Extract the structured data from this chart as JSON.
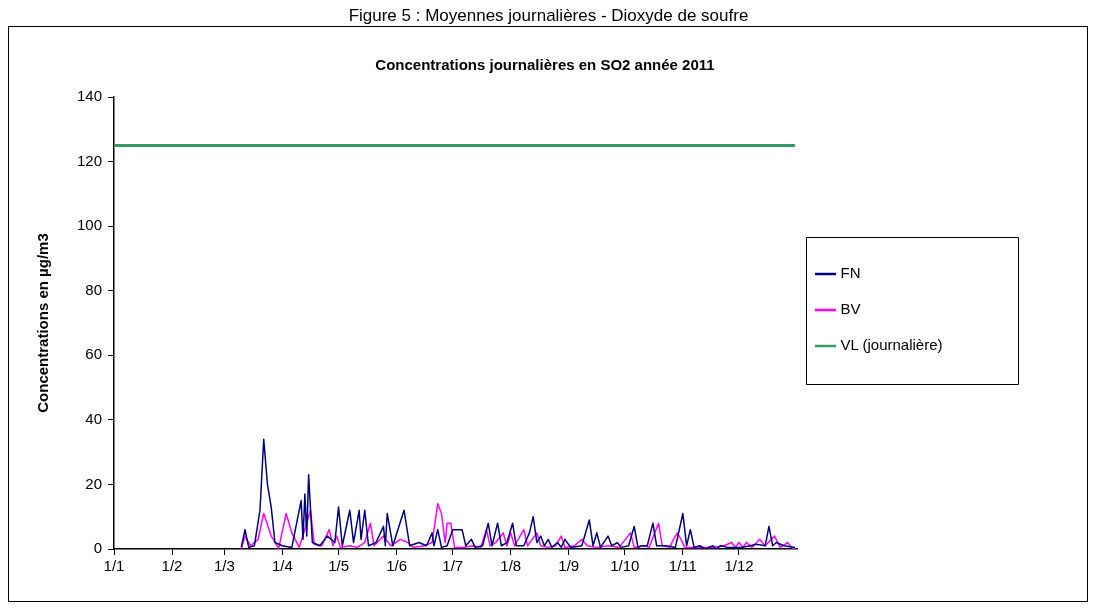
{
  "chart_data": {
    "type": "line",
    "subtitle": "Figure 5 : Moyennes journalières - Dioxyde de soufre",
    "title": "Concentrations journalières en SO2 année 2011",
    "ylabel": "Concentrations en µg/m3",
    "xlim": [
      "2011-01-01",
      "2012-01-01"
    ],
    "xticks": [
      {
        "value": "2011-01-01",
        "label": "1/1"
      },
      {
        "value": "2011-02-01",
        "label": "1/2"
      },
      {
        "value": "2011-03-01",
        "label": "1/3"
      },
      {
        "value": "2011-04-01",
        "label": "1/4"
      },
      {
        "value": "2011-05-01",
        "label": "1/5"
      },
      {
        "value": "2011-06-01",
        "label": "1/6"
      },
      {
        "value": "2011-07-01",
        "label": "1/7"
      },
      {
        "value": "2011-08-01",
        "label": "1/8"
      },
      {
        "value": "2011-09-01",
        "label": "1/9"
      },
      {
        "value": "2011-10-01",
        "label": "1/10"
      },
      {
        "value": "2011-11-01",
        "label": "1/11"
      },
      {
        "value": "2011-12-01",
        "label": "1/12"
      }
    ],
    "ylim": [
      0,
      140
    ],
    "yticks": [
      0,
      20,
      40,
      60,
      80,
      100,
      120,
      140
    ],
    "grid": false,
    "legend": "right",
    "marker": "none",
    "line_style": "solid",
    "series": [
      {
        "name": "FN",
        "color": "#000080",
        "x": [
          "2011-03-10",
          "2011-03-12",
          "2011-03-14",
          "2011-03-17",
          "2011-03-20",
          "2011-03-22",
          "2011-03-24",
          "2011-03-26",
          "2011-03-28",
          "2011-04-01",
          "2011-04-06",
          "2011-04-11",
          "2011-04-12",
          "2011-04-13",
          "2011-04-14",
          "2011-04-15",
          "2011-04-17",
          "2011-04-21",
          "2011-04-25",
          "2011-04-29",
          "2011-05-01",
          "2011-05-03",
          "2011-05-07",
          "2011-05-09",
          "2011-05-12",
          "2011-05-13",
          "2011-05-15",
          "2011-05-17",
          "2011-05-21",
          "2011-05-25",
          "2011-05-26",
          "2011-05-27",
          "2011-05-30",
          "2011-06-05",
          "2011-06-08",
          "2011-06-13",
          "2011-06-17",
          "2011-06-20",
          "2011-06-21",
          "2011-06-23",
          "2011-06-25",
          "2011-06-28",
          "2011-07-01",
          "2011-07-06",
          "2011-07-08",
          "2011-07-11",
          "2011-07-13",
          "2011-07-17",
          "2011-07-20",
          "2011-07-22",
          "2011-07-25",
          "2011-07-27",
          "2011-07-30",
          "2011-08-02",
          "2011-08-04",
          "2011-08-08",
          "2011-08-11",
          "2011-08-13",
          "2011-08-15",
          "2011-08-17",
          "2011-08-19",
          "2011-08-21",
          "2011-08-23",
          "2011-08-26",
          "2011-08-28",
          "2011-08-30",
          "2011-09-02",
          "2011-09-08",
          "2011-09-12",
          "2011-09-14",
          "2011-09-16",
          "2011-09-18",
          "2011-09-22",
          "2011-09-24",
          "2011-09-27",
          "2011-09-29",
          "2011-10-03",
          "2011-10-06",
          "2011-10-08",
          "2011-10-10",
          "2011-10-13",
          "2011-10-16",
          "2011-10-18",
          "2011-10-23",
          "2011-10-28",
          "2011-11-01",
          "2011-11-03",
          "2011-11-05",
          "2011-11-07",
          "2011-11-10",
          "2011-11-13",
          "2011-11-17",
          "2011-11-19",
          "2011-11-21",
          "2011-11-25",
          "2011-12-02",
          "2011-12-07",
          "2011-12-10",
          "2011-12-15",
          "2011-12-17",
          "2011-12-19",
          "2011-12-21",
          "2011-12-25",
          "2011-12-31"
        ],
        "values": [
          0.5,
          6,
          0.5,
          1,
          12,
          34,
          20,
          13,
          2,
          1,
          0.5,
          15,
          3,
          17,
          4,
          23,
          2,
          1,
          4,
          2,
          13,
          1,
          12,
          2,
          12,
          3,
          12,
          1,
          2,
          7,
          1,
          11,
          1,
          12,
          1,
          2,
          1,
          5,
          1,
          6,
          0.5,
          1,
          6,
          6,
          1,
          3,
          0.5,
          1,
          8,
          1,
          8,
          1,
          2,
          8,
          1,
          1,
          5,
          10,
          2,
          4,
          1,
          3,
          0.5,
          2,
          0.5,
          3,
          0.5,
          1,
          9,
          1,
          5,
          0.5,
          4,
          1,
          2,
          0.5,
          1,
          7,
          0.5,
          1,
          1,
          8,
          1,
          1,
          0.5,
          11,
          1,
          6,
          0.5,
          1,
          0,
          1,
          0,
          1,
          0.5,
          0.5,
          1,
          1.5,
          1,
          7,
          1,
          2,
          1,
          0.5
        ]
      },
      {
        "name": "BV",
        "color": "#ff00ff",
        "x": [
          "2011-03-10",
          "2011-03-12",
          "2011-03-15",
          "2011-03-19",
          "2011-03-22",
          "2011-03-26",
          "2011-03-30",
          "2011-04-03",
          "2011-04-06",
          "2011-04-10",
          "2011-04-14",
          "2011-04-16",
          "2011-04-18",
          "2011-04-22",
          "2011-04-26",
          "2011-04-28",
          "2011-04-30",
          "2011-05-02",
          "2011-05-07",
          "2011-05-11",
          "2011-05-15",
          "2011-05-18",
          "2011-05-20",
          "2011-05-25",
          "2011-05-29",
          "2011-06-03",
          "2011-06-07",
          "2011-06-10",
          "2011-06-16",
          "2011-06-20",
          "2011-06-23",
          "2011-06-25",
          "2011-06-27",
          "2011-06-28",
          "2011-06-30",
          "2011-07-02",
          "2011-07-06",
          "2011-07-12",
          "2011-07-16",
          "2011-07-19",
          "2011-07-21",
          "2011-07-24",
          "2011-07-28",
          "2011-07-30",
          "2011-08-01",
          "2011-08-03",
          "2011-08-08",
          "2011-08-10",
          "2011-08-15",
          "2011-08-17",
          "2011-08-21",
          "2011-08-25",
          "2011-08-28",
          "2011-08-30",
          "2011-09-04",
          "2011-09-08",
          "2011-09-11",
          "2011-09-16",
          "2011-09-22",
          "2011-09-28",
          "2011-10-04",
          "2011-10-06",
          "2011-10-11",
          "2011-10-14",
          "2011-10-19",
          "2011-10-21",
          "2011-10-25",
          "2011-10-27",
          "2011-10-29",
          "2011-10-31",
          "2011-11-02",
          "2011-11-07",
          "2011-11-17",
          "2011-11-23",
          "2011-11-27",
          "2011-11-29",
          "2011-12-01",
          "2011-12-03",
          "2011-12-05",
          "2011-12-08",
          "2011-12-12",
          "2011-12-15",
          "2011-12-20",
          "2011-12-23",
          "2011-12-27",
          "2011-12-29",
          "2011-12-31"
        ],
        "values": [
          0,
          4,
          1,
          3,
          11,
          4,
          0.2,
          11,
          5,
          0.5,
          8,
          12,
          1.5,
          1,
          6,
          1,
          4,
          0.5,
          1,
          0.5,
          2,
          8,
          1,
          4,
          1,
          3,
          2,
          0.5,
          1,
          2,
          14,
          11,
          2,
          8,
          8,
          0.5,
          0.5,
          1,
          0.5,
          6,
          1,
          2,
          5,
          1,
          5,
          1,
          6,
          1,
          5,
          1,
          0.5,
          1,
          4,
          0.5,
          1,
          3,
          1,
          0.5,
          1,
          0.5,
          5,
          0.5,
          1,
          0.5,
          8,
          1,
          0.5,
          3,
          5,
          3,
          0.5,
          0.5,
          0.5,
          1,
          2,
          0.5,
          2,
          0.5,
          2,
          0.5,
          3,
          1,
          4,
          0.5,
          2,
          0.5,
          0
        ]
      },
      {
        "name": "VL (journalière)",
        "color": "#339966",
        "x": [
          "2011-01-01",
          "2011-12-31"
        ],
        "values": [
          125,
          125
        ]
      }
    ]
  }
}
